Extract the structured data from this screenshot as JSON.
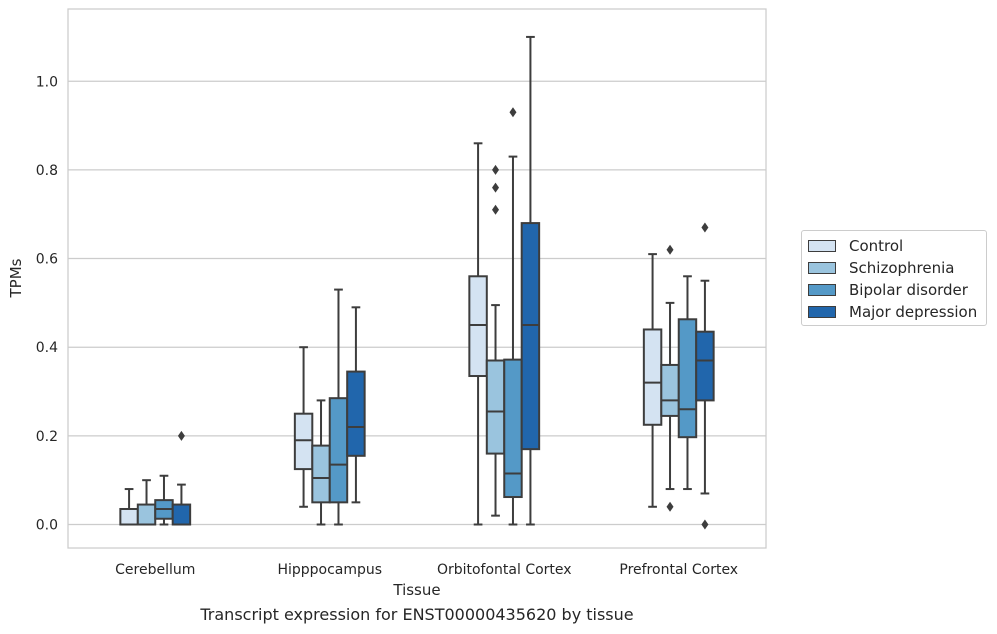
{
  "chart_data": {
    "type": "box",
    "xlabel": "Tissue",
    "ylabel": "TPMs",
    "ylim": [
      -0.053,
      1.163
    ],
    "yticks": [
      "0.0",
      "0.2",
      "0.4",
      "0.6",
      "0.8",
      "1.0"
    ],
    "grid": true,
    "legend_position": "right",
    "categories": [
      "Cerebellum",
      "Hipppocampus",
      "Orbitofontal Cortex",
      "Prefrontal Cortex"
    ],
    "series": [
      {
        "name": "Control",
        "color": "#d4e3f2",
        "boxes": [
          {
            "whislo": 0.0,
            "q1": 0.0,
            "med": 0.0,
            "q3": 0.035,
            "whishi": 0.08,
            "fliers": []
          },
          {
            "whislo": 0.04,
            "q1": 0.125,
            "med": 0.19,
            "q3": 0.25,
            "whishi": 0.4,
            "fliers": []
          },
          {
            "whislo": 0.0,
            "q1": 0.335,
            "med": 0.45,
            "q3": 0.56,
            "whishi": 0.86,
            "fliers": []
          },
          {
            "whislo": 0.04,
            "q1": 0.225,
            "med": 0.32,
            "q3": 0.44,
            "whishi": 0.61,
            "fliers": []
          }
        ]
      },
      {
        "name": "Schizophrenia",
        "color": "#9ac4de",
        "boxes": [
          {
            "whislo": 0.0,
            "q1": 0.0,
            "med": 0.0,
            "q3": 0.045,
            "whishi": 0.1,
            "fliers": []
          },
          {
            "whislo": 0.0,
            "q1": 0.05,
            "med": 0.105,
            "q3": 0.178,
            "whishi": 0.28,
            "fliers": []
          },
          {
            "whislo": 0.02,
            "q1": 0.16,
            "med": 0.255,
            "q3": 0.37,
            "whishi": 0.495,
            "fliers": [
              0.71,
              0.76,
              0.8
            ]
          },
          {
            "whislo": 0.08,
            "q1": 0.245,
            "med": 0.28,
            "q3": 0.36,
            "whishi": 0.5,
            "fliers": [
              0.04,
              0.62
            ]
          }
        ]
      },
      {
        "name": "Bipolar disorder",
        "color": "#5499c7",
        "boxes": [
          {
            "whislo": 0.0,
            "q1": 0.013,
            "med": 0.035,
            "q3": 0.055,
            "whishi": 0.11,
            "fliers": []
          },
          {
            "whislo": 0.0,
            "q1": 0.05,
            "med": 0.135,
            "q3": 0.285,
            "whishi": 0.53,
            "fliers": []
          },
          {
            "whislo": 0.0,
            "q1": 0.062,
            "med": 0.115,
            "q3": 0.372,
            "whishi": 0.83,
            "fliers": [
              0.93
            ]
          },
          {
            "whislo": 0.08,
            "q1": 0.197,
            "med": 0.26,
            "q3": 0.463,
            "whishi": 0.56,
            "fliers": []
          }
        ]
      },
      {
        "name": "Major depression",
        "color": "#2166ac",
        "boxes": [
          {
            "whislo": 0.0,
            "q1": 0.0,
            "med": 0.0,
            "q3": 0.045,
            "whishi": 0.09,
            "fliers": [
              0.2
            ]
          },
          {
            "whislo": 0.05,
            "q1": 0.155,
            "med": 0.22,
            "q3": 0.345,
            "whishi": 0.49,
            "fliers": []
          },
          {
            "whislo": 0.0,
            "q1": 0.17,
            "med": 0.45,
            "q3": 0.68,
            "whishi": 1.1,
            "fliers": []
          },
          {
            "whislo": 0.07,
            "q1": 0.28,
            "med": 0.37,
            "q3": 0.435,
            "whishi": 0.55,
            "fliers": [
              0.0,
              0.67
            ]
          }
        ]
      }
    ]
  },
  "caption": "Transcript expression for ENST00000435620 by tissue"
}
